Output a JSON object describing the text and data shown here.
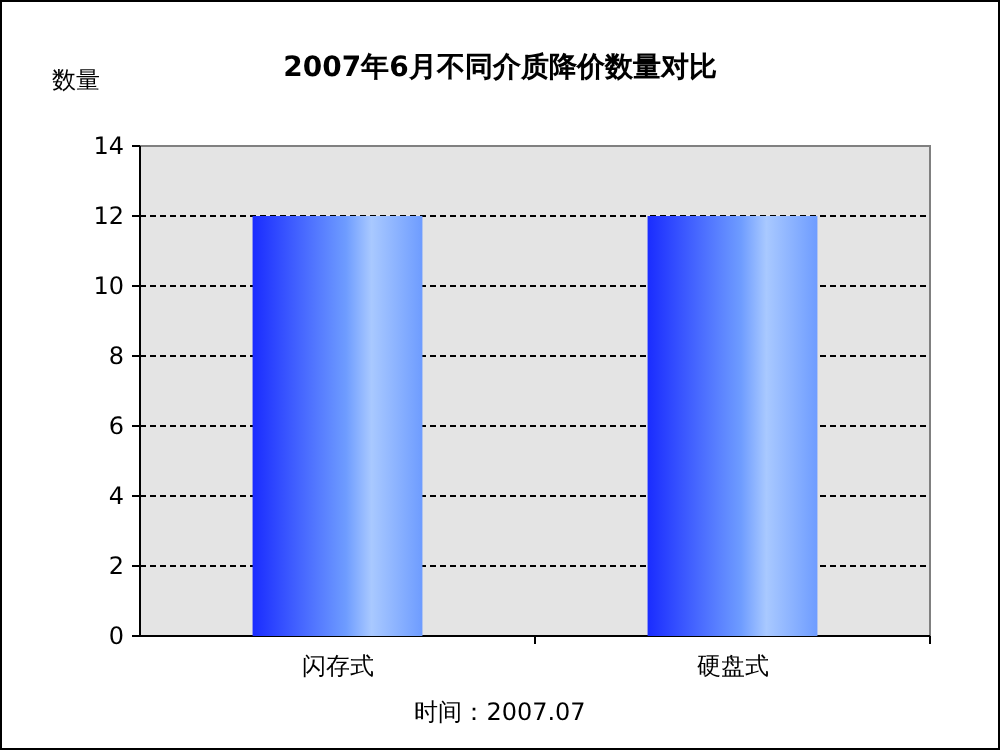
{
  "chart_data": {
    "type": "bar",
    "title": "2007年6月不同介质降价数量对比",
    "ylabel": "数量",
    "categories": [
      "闪存式",
      "硬盘式"
    ],
    "values": [
      12,
      12
    ],
    "color": "#6e9cff",
    "ylim": [
      0,
      14
    ],
    "yticks": [
      0,
      2,
      4,
      6,
      8,
      10,
      12,
      14
    ],
    "grid": "y",
    "annotations": [
      "时间：2007.07"
    ]
  }
}
